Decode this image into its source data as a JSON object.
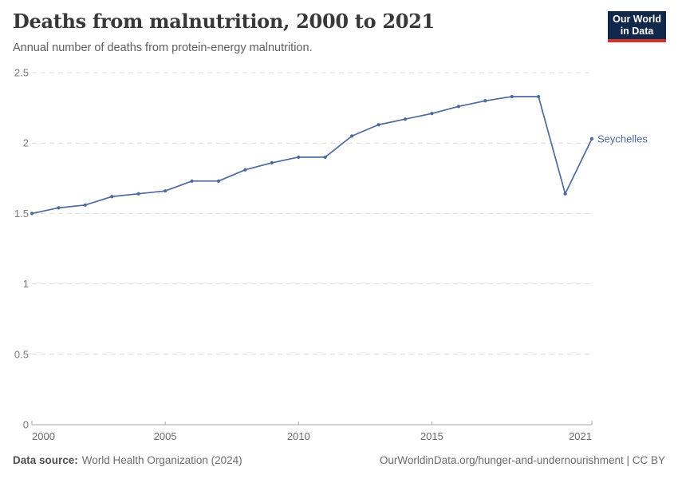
{
  "header": {
    "title": "Deaths from malnutrition, 2000 to 2021",
    "subtitle": "Annual number of deaths from protein-energy malnutrition.",
    "logo": {
      "line1": "Our World",
      "line2": "in Data"
    }
  },
  "chart_data": {
    "type": "line",
    "title": "Deaths from malnutrition, 2000 to 2021",
    "subtitle": "Annual number of deaths from protein-energy malnutrition.",
    "x": [
      2000,
      2001,
      2002,
      2003,
      2004,
      2005,
      2006,
      2007,
      2008,
      2009,
      2010,
      2011,
      2012,
      2013,
      2014,
      2015,
      2016,
      2017,
      2018,
      2019,
      2020,
      2021
    ],
    "series": [
      {
        "name": "Seychelles",
        "color": "#4c6a9c",
        "values": [
          1.5,
          1.54,
          1.56,
          1.62,
          1.64,
          1.66,
          1.73,
          1.73,
          1.81,
          1.86,
          1.9,
          1.9,
          2.05,
          2.13,
          2.17,
          2.21,
          2.26,
          2.3,
          2.33,
          2.33,
          1.64,
          2.03
        ]
      }
    ],
    "xlim": [
      2000,
      2021
    ],
    "ylim": [
      0,
      2.5
    ],
    "x_ticks": [
      2000,
      2005,
      2010,
      2015,
      2021
    ],
    "y_ticks": [
      0,
      0.5,
      1,
      1.5,
      2,
      2.5
    ],
    "grid": "horizontal-dashed",
    "legend": "inline-end-of-line-label",
    "style": {
      "line_color": "#4c6a9c",
      "grid_color": "#dcdcdc",
      "axis_color": "#a5a5a5",
      "tick_mark_color": "#a5a5a5",
      "y_tick_color": "#7a7a7a",
      "x_tick_color": "#696969"
    }
  },
  "footer": {
    "source_label": "Data source:",
    "source_text": "World Health Organization (2024)",
    "attribution": "OurWorldinData.org/hunger-and-undernourishment | CC BY"
  },
  "colors": {
    "background": "#ffffff",
    "title": "#383838",
    "subtitle": "#5e5e5e",
    "footer": "#6c6c6c",
    "logo_bg": "#12284b",
    "logo_accent": "#cf342c",
    "series_blue": "#4c6a9c"
  }
}
